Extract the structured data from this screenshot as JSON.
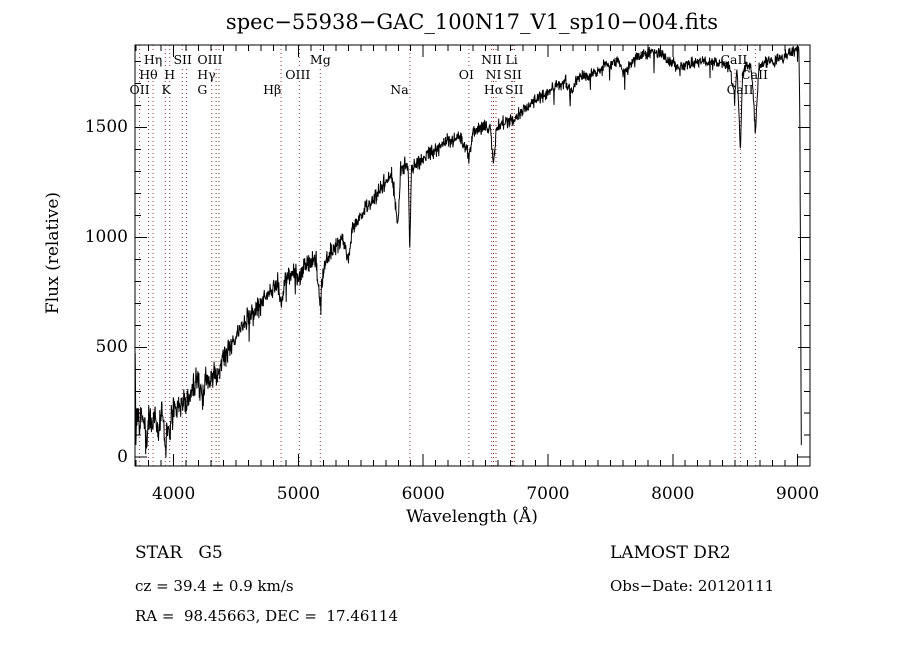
{
  "title": "spec−55938−GAC_100N17_V1_sp10−004.fits",
  "chart_data": {
    "type": "line",
    "title": "spec−55938−GAC_100N17_V1_sp10−004.fits",
    "xlabel": "Wavelength (Å)",
    "ylabel": "Flux (relative)",
    "xlim": [
      3690,
      9100
    ],
    "ylim": [
      -40,
      1875
    ],
    "grid": false,
    "x_major_ticks": [
      4000,
      5000,
      6000,
      7000,
      8000,
      9000
    ],
    "x_major_tick_labels": [
      "4000",
      "5000",
      "6000",
      "7000",
      "8000",
      "9000"
    ],
    "y_major_ticks": [
      0,
      500,
      1000,
      1500
    ],
    "y_major_tick_labels": [
      "0",
      "500",
      "1000",
      "1500"
    ],
    "x_minor_step": 100,
    "y_minor_step": 100,
    "spectrum_color": "#000000",
    "marker_line_color": "#993333",
    "line_markers": [
      3727,
      3798,
      3835,
      3933,
      3968,
      4069,
      4102,
      4305,
      4340,
      4363,
      4861,
      5007,
      5175,
      5893,
      6366,
      6548,
      6563,
      6583,
      6708,
      6716,
      6731,
      8498,
      8542,
      8662
    ],
    "line_labels": [
      {
        "text": "OII",
        "anchor": 3727,
        "row": 3
      },
      {
        "text": "Hθ",
        "anchor": 3798,
        "row": 2
      },
      {
        "text": "Hη",
        "anchor": 3835,
        "row": 1
      },
      {
        "text": "K",
        "anchor": 3940,
        "row": 3
      },
      {
        "text": "H",
        "anchor": 3968,
        "row": 2
      },
      {
        "text": "SII",
        "anchor": 4072,
        "row": 1
      },
      {
        "text": "G",
        "anchor": 4230,
        "row": 3
      },
      {
        "text": "Hγ",
        "anchor": 4262,
        "row": 2
      },
      {
        "text": "OIII",
        "anchor": 4290,
        "row": 1
      },
      {
        "text": "Hβ",
        "anchor": 4790,
        "row": 3
      },
      {
        "text": "OIII",
        "anchor": 4995,
        "row": 2
      },
      {
        "text": "Mg",
        "anchor": 5175,
        "row": 1
      },
      {
        "text": "Na",
        "anchor": 5810,
        "row": 3
      },
      {
        "text": "OI",
        "anchor": 6345,
        "row": 2
      },
      {
        "text": "NII",
        "anchor": 6548,
        "row": 1
      },
      {
        "text": "Li",
        "anchor": 6708,
        "row": 1
      },
      {
        "text": "NII",
        "anchor": 6583,
        "row": 2
      },
      {
        "text": "SII",
        "anchor": 6716,
        "row": 2
      },
      {
        "text": "Hα",
        "anchor": 6563,
        "row": 3
      },
      {
        "text": "SII",
        "anchor": 6731,
        "row": 3
      },
      {
        "text": "CaII",
        "anchor": 8490,
        "row": 1
      },
      {
        "text": "CaII",
        "anchor": 8655,
        "row": 2
      },
      {
        "text": "CaII",
        "anchor": 8540,
        "row": 3
      }
    ],
    "continuum": [
      [
        3692,
        420
      ],
      [
        3697,
        60
      ],
      [
        3705,
        150
      ],
      [
        3715,
        220
      ],
      [
        3727,
        120
      ],
      [
        3740,
        230
      ],
      [
        3752,
        140
      ],
      [
        3762,
        210
      ],
      [
        3772,
        100
      ],
      [
        3783,
        45
      ],
      [
        3795,
        180
      ],
      [
        3810,
        200
      ],
      [
        3830,
        120
      ],
      [
        3845,
        210
      ],
      [
        3860,
        170
      ],
      [
        3875,
        70
      ],
      [
        3890,
        160
      ],
      [
        3905,
        215
      ],
      [
        3920,
        140
      ],
      [
        3933,
        25
      ],
      [
        3945,
        150
      ],
      [
        3957,
        120
      ],
      [
        3968,
        95
      ],
      [
        3980,
        200
      ],
      [
        4010,
        215
      ],
      [
        4040,
        260
      ],
      [
        4065,
        235
      ],
      [
        4085,
        280
      ],
      [
        4102,
        230
      ],
      [
        4130,
        300
      ],
      [
        4165,
        330
      ],
      [
        4200,
        340
      ],
      [
        4227,
        265
      ],
      [
        4262,
        360
      ],
      [
        4300,
        350
      ],
      [
        4320,
        385
      ],
      [
        4341,
        355
      ],
      [
        4380,
        430
      ],
      [
        4420,
        470
      ],
      [
        4470,
        505
      ],
      [
        4520,
        560
      ],
      [
        4570,
        605
      ],
      [
        4620,
        645
      ],
      [
        4680,
        685
      ],
      [
        4740,
        725
      ],
      [
        4800,
        775
      ],
      [
        4830,
        795
      ],
      [
        4861,
        700
      ],
      [
        4890,
        805
      ],
      [
        4930,
        825
      ],
      [
        4970,
        845
      ],
      [
        5007,
        820
      ],
      [
        5050,
        870
      ],
      [
        5100,
        890
      ],
      [
        5140,
        905
      ],
      [
        5175,
        700
      ],
      [
        5210,
        885
      ],
      [
        5250,
        925
      ],
      [
        5300,
        955
      ],
      [
        5350,
        1005
      ],
      [
        5404,
        905
      ],
      [
        5430,
        1035
      ],
      [
        5470,
        1075
      ],
      [
        5520,
        1115
      ],
      [
        5560,
        1145
      ],
      [
        5600,
        1175
      ],
      [
        5650,
        1215
      ],
      [
        5700,
        1255
      ],
      [
        5750,
        1285
      ],
      [
        5797,
        1060
      ],
      [
        5820,
        1305
      ],
      [
        5860,
        1335
      ],
      [
        5880,
        1310
      ],
      [
        5893,
        930
      ],
      [
        5906,
        1325
      ],
      [
        5940,
        1335
      ],
      [
        5990,
        1355
      ],
      [
        6040,
        1385
      ],
      [
        6090,
        1395
      ],
      [
        6140,
        1415
      ],
      [
        6190,
        1435
      ],
      [
        6240,
        1445
      ],
      [
        6300,
        1455
      ],
      [
        6366,
        1370
      ],
      [
        6400,
        1475
      ],
      [
        6450,
        1495
      ],
      [
        6500,
        1505
      ],
      [
        6540,
        1485
      ],
      [
        6563,
        1330
      ],
      [
        6585,
        1495
      ],
      [
        6620,
        1515
      ],
      [
        6660,
        1525
      ],
      [
        6708,
        1535
      ],
      [
        6731,
        1525
      ],
      [
        6780,
        1565
      ],
      [
        6840,
        1595
      ],
      [
        6900,
        1625
      ],
      [
        6960,
        1645
      ],
      [
        7020,
        1665
      ],
      [
        7080,
        1695
      ],
      [
        7140,
        1705
      ],
      [
        7186,
        1655
      ],
      [
        7230,
        1725
      ],
      [
        7280,
        1735
      ],
      [
        7340,
        1745
      ],
      [
        7400,
        1755
      ],
      [
        7460,
        1785
      ],
      [
        7520,
        1795
      ],
      [
        7560,
        1805
      ],
      [
        7600,
        1745
      ],
      [
        7640,
        1765
      ],
      [
        7680,
        1805
      ],
      [
        7730,
        1825
      ],
      [
        7780,
        1835
      ],
      [
        7840,
        1845
      ],
      [
        7900,
        1835
      ],
      [
        7950,
        1805
      ],
      [
        8000,
        1795
      ],
      [
        8060,
        1775
      ],
      [
        8120,
        1785
      ],
      [
        8180,
        1795
      ],
      [
        8240,
        1805
      ],
      [
        8300,
        1795
      ],
      [
        8360,
        1795
      ],
      [
        8420,
        1785
      ],
      [
        8460,
        1765
      ],
      [
        8498,
        1645
      ],
      [
        8515,
        1775
      ],
      [
        8542,
        1400
      ],
      [
        8560,
        1745
      ],
      [
        8600,
        1785
      ],
      [
        8630,
        1765
      ],
      [
        8662,
        1490
      ],
      [
        8690,
        1775
      ],
      [
        8740,
        1795
      ],
      [
        8800,
        1805
      ],
      [
        8860,
        1815
      ],
      [
        8920,
        1835
      ],
      [
        8970,
        1845
      ],
      [
        9010,
        1870
      ],
      [
        9018,
        1600
      ],
      [
        9024,
        900
      ],
      [
        9030,
        20
      ]
    ],
    "noise_amp": [
      [
        3690,
        75
      ],
      [
        4200,
        58
      ],
      [
        4700,
        47
      ],
      [
        5200,
        42
      ],
      [
        5700,
        38
      ],
      [
        6200,
        33
      ],
      [
        6800,
        30
      ],
      [
        7400,
        28
      ],
      [
        8200,
        26
      ],
      [
        9030,
        25
      ]
    ],
    "seed": 20120111
  },
  "annotations": {
    "class_line": "STAR   G5",
    "cz_line": "cz = 39.4 ± 0.9 km/s",
    "radec_line": "RA =  98.45663, DEC =  17.46114",
    "survey": "LAMOST DR2",
    "obs_date": "Obs−Date: 20120111"
  }
}
